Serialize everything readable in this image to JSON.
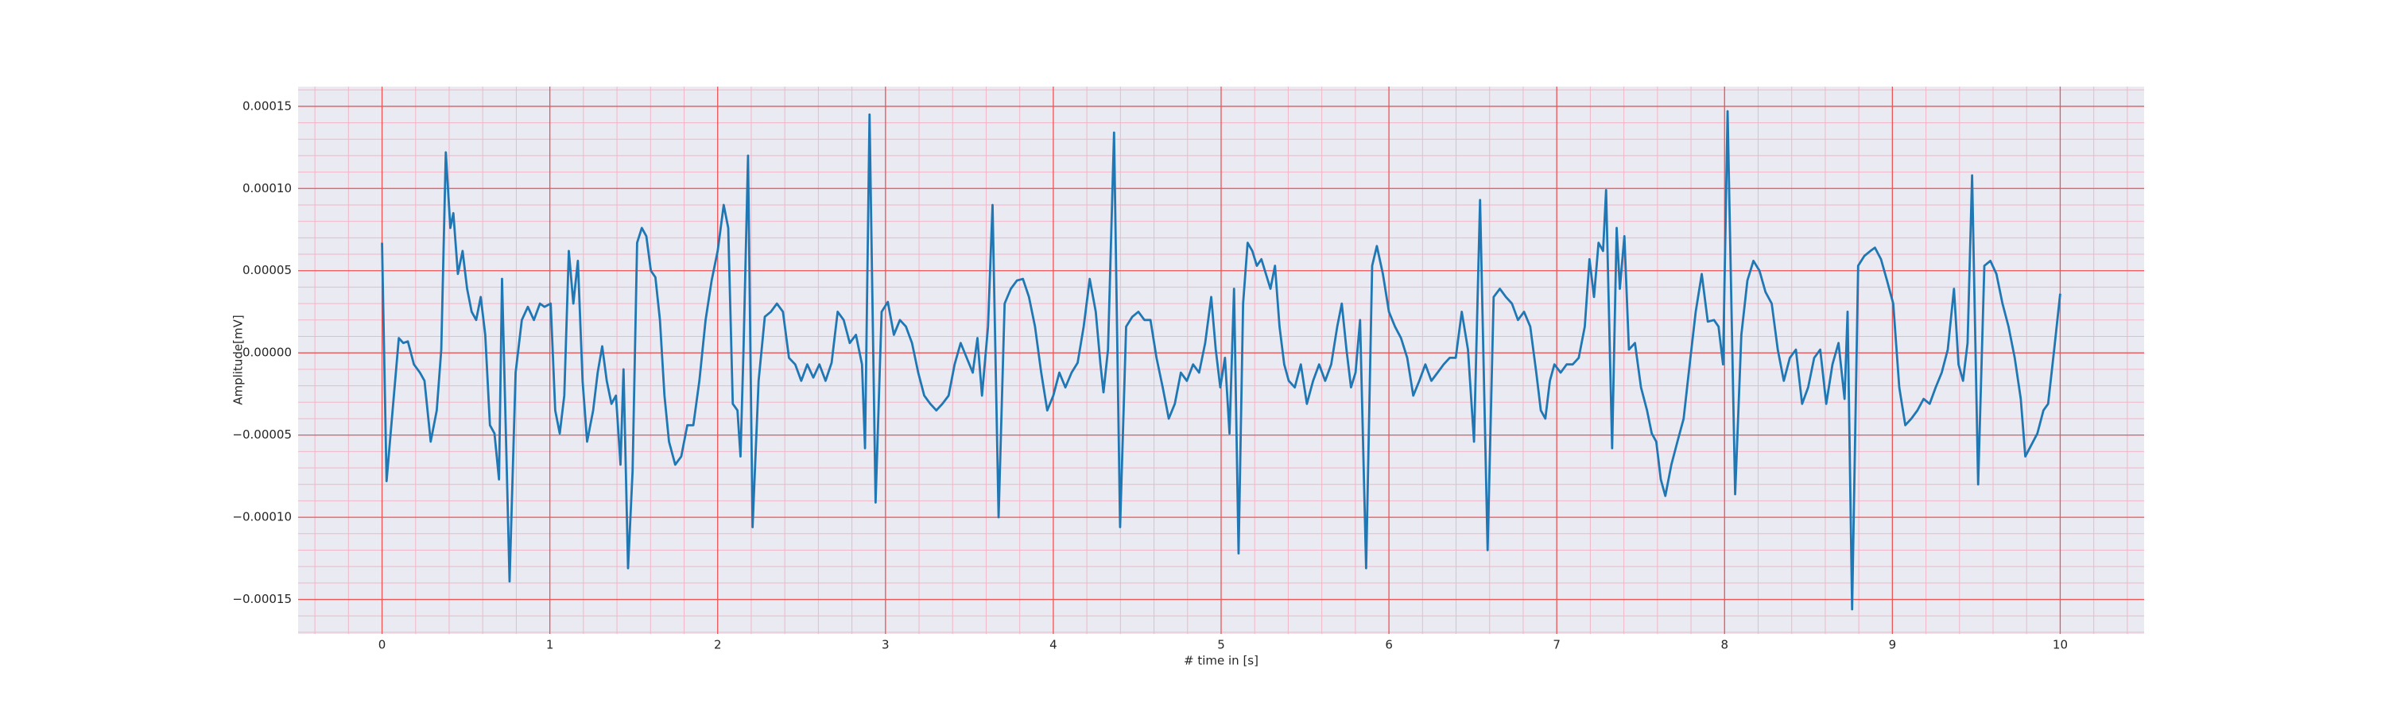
{
  "chart_data": {
    "type": "line",
    "xlabel": "# time in [s]",
    "ylabel": "Amplitude[mV]",
    "color": "#1f77b4",
    "grid": true,
    "minor_grid": true,
    "xlim": [
      -0.5,
      10.5
    ],
    "ylim": [
      -0.000171,
      0.000162
    ],
    "xticks": [
      0,
      1,
      2,
      3,
      4,
      5,
      6,
      7,
      8,
      9,
      10
    ],
    "yticks": [
      {
        "value": -0.00015,
        "label": "−0.00015"
      },
      {
        "value": -0.0001,
        "label": "−0.00010"
      },
      {
        "value": -5e-05,
        "label": "−0.00005"
      },
      {
        "value": 0,
        "label": "0.00000"
      },
      {
        "value": 5e-05,
        "label": "0.00005"
      },
      {
        "value": 0.0001,
        "label": "0.00010"
      },
      {
        "value": 0.00015,
        "label": "0.00015"
      }
    ],
    "x": [
      0,
      0.027,
      0.063,
      0.1,
      0.127,
      0.154,
      0.19,
      0.226,
      0.253,
      0.29,
      0.326,
      0.353,
      0.38,
      0.407,
      0.425,
      0.452,
      0.48,
      0.507,
      0.534,
      0.561,
      0.588,
      0.615,
      0.643,
      0.67,
      0.697,
      0.715,
      0.76,
      0.796,
      0.833,
      0.869,
      0.905,
      0.941,
      0.968,
      1.005,
      1.032,
      1.059,
      1.086,
      1.113,
      1.14,
      1.167,
      1.195,
      1.222,
      1.258,
      1.285,
      1.312,
      1.339,
      1.367,
      1.394,
      1.421,
      1.439,
      1.466,
      1.493,
      1.52,
      1.548,
      1.575,
      1.602,
      1.629,
      1.656,
      1.683,
      1.71,
      1.747,
      1.783,
      1.819,
      1.855,
      1.891,
      1.928,
      1.964,
      2.0,
      2.036,
      2.063,
      2.09,
      2.118,
      2.136,
      2.154,
      2.181,
      2.208,
      2.244,
      2.281,
      2.317,
      2.353,
      2.389,
      2.425,
      2.462,
      2.498,
      2.534,
      2.57,
      2.606,
      2.643,
      2.679,
      2.715,
      2.751,
      2.787,
      2.824,
      2.86,
      2.878,
      2.905,
      2.941,
      2.977,
      3.014,
      3.05,
      3.086,
      3.122,
      3.158,
      3.195,
      3.231,
      3.267,
      3.303,
      3.339,
      3.376,
      3.412,
      3.448,
      3.484,
      3.52,
      3.548,
      3.575,
      3.611,
      3.638,
      3.674,
      3.71,
      3.747,
      3.783,
      3.819,
      3.855,
      3.891,
      3.928,
      3.964,
      4.0,
      4.036,
      4.072,
      4.109,
      4.145,
      4.181,
      4.217,
      4.253,
      4.281,
      4.299,
      4.326,
      4.362,
      4.398,
      4.434,
      4.471,
      4.507,
      4.543,
      4.579,
      4.615,
      4.652,
      4.688,
      4.724,
      4.76,
      4.796,
      4.833,
      4.869,
      4.905,
      4.941,
      4.968,
      4.995,
      5.023,
      5.05,
      5.077,
      5.104,
      5.131,
      5.158,
      5.186,
      5.213,
      5.24,
      5.267,
      5.294,
      5.321,
      5.348,
      5.376,
      5.403,
      5.439,
      5.475,
      5.511,
      5.548,
      5.584,
      5.62,
      5.656,
      5.692,
      5.719,
      5.747,
      5.774,
      5.801,
      5.828,
      5.864,
      5.9,
      5.928,
      5.964,
      6.0,
      6.036,
      6.072,
      6.109,
      6.145,
      6.181,
      6.217,
      6.253,
      6.29,
      6.326,
      6.362,
      6.398,
      6.434,
      6.471,
      6.507,
      6.543,
      6.588,
      6.624,
      6.661,
      6.697,
      6.733,
      6.769,
      6.805,
      6.842,
      6.878,
      6.905,
      6.932,
      6.959,
      6.986,
      7.023,
      7.059,
      7.095,
      7.131,
      7.167,
      7.195,
      7.222,
      7.249,
      7.276,
      7.294,
      7.33,
      7.357,
      7.376,
      7.403,
      7.43,
      7.466,
      7.502,
      7.538,
      7.566,
      7.593,
      7.62,
      7.647,
      7.683,
      7.719,
      7.756,
      7.792,
      7.828,
      7.864,
      7.9,
      7.937,
      7.964,
      7.991,
      8.018,
      8.063,
      8.1,
      8.136,
      8.172,
      8.208,
      8.244,
      8.281,
      8.317,
      8.353,
      8.389,
      8.425,
      8.462,
      8.498,
      8.534,
      8.57,
      8.606,
      8.643,
      8.679,
      8.715,
      8.733,
      8.76,
      8.796,
      8.833,
      8.869,
      8.896,
      8.932,
      8.968,
      9.005,
      9.041,
      9.077,
      9.113,
      9.149,
      9.186,
      9.222,
      9.258,
      9.294,
      9.33,
      9.367,
      9.394,
      9.421,
      9.448,
      9.475,
      9.511,
      9.548,
      9.584,
      9.62,
      9.656,
      9.692,
      9.729,
      9.765,
      9.792,
      9.828,
      9.864,
      9.9,
      9.928,
      9.964,
      10.0
    ],
    "values": [
      6.7e-05,
      -7.8e-05,
      -3.5e-05,
      9e-06,
      6e-06,
      7e-06,
      -7e-06,
      -1.2e-05,
      -1.7e-05,
      -5.4e-05,
      -3.5e-05,
      2e-06,
      0.000122,
      7.6e-05,
      8.5e-05,
      4.8e-05,
      6.2e-05,
      3.9e-05,
      2.5e-05,
      2e-05,
      3.4e-05,
      1.1e-05,
      -4.4e-05,
      -4.9e-05,
      -7.7e-05,
      4.5e-05,
      -0.000139,
      -1.2e-05,
      2e-05,
      2.8e-05,
      2e-05,
      3e-05,
      2.8e-05,
      3e-05,
      -3.5e-05,
      -4.9e-05,
      -2.6e-05,
      6.2e-05,
      3e-05,
      5.6e-05,
      -1.7e-05,
      -5.4e-05,
      -3.5e-05,
      -1.2e-05,
      4e-06,
      -1.7e-05,
      -3.1e-05,
      -2.6e-05,
      -6.8e-05,
      -1e-05,
      -0.000131,
      -7.2e-05,
      6.7e-05,
      7.6e-05,
      7.1e-05,
      5e-05,
      4.6e-05,
      2e-05,
      -2.6e-05,
      -5.4e-05,
      -6.8e-05,
      -6.3e-05,
      -4.4e-05,
      -4.4e-05,
      -1.7e-05,
      2e-05,
      4.4e-05,
      6.2e-05,
      9e-05,
      7.6e-05,
      -3.1e-05,
      -3.5e-05,
      -6.3e-05,
      2e-06,
      0.00012,
      -0.000106,
      -1.7e-05,
      2.2e-05,
      2.5e-05,
      3e-05,
      2.5e-05,
      -3e-06,
      -7e-06,
      -1.7e-05,
      -7e-06,
      -1.5e-05,
      -7e-06,
      -1.7e-05,
      -6e-06,
      2.5e-05,
      2e-05,
      6e-06,
      1.1e-05,
      -7e-06,
      -5.8e-05,
      0.000145,
      -9.1e-05,
      2.5e-05,
      3.1e-05,
      1.1e-05,
      2e-05,
      1.6e-05,
      6e-06,
      -1.2e-05,
      -2.6e-05,
      -3.1e-05,
      -3.5e-05,
      -3.1e-05,
      -2.6e-05,
      -7e-06,
      6e-06,
      -3e-06,
      -1.2e-05,
      9e-06,
      -2.6e-05,
      1.6e-05,
      9e-05,
      -0.0001,
      3e-05,
      3.9e-05,
      4.4e-05,
      4.5e-05,
      3.4e-05,
      1.6e-05,
      -1.2e-05,
      -3.5e-05,
      -2.6e-05,
      -1.2e-05,
      -2.1e-05,
      -1.2e-05,
      -6e-06,
      1.6e-05,
      4.5e-05,
      2.5e-05,
      -7e-06,
      -2.4e-05,
      2e-06,
      0.000134,
      -0.000106,
      1.6e-05,
      2.2e-05,
      2.5e-05,
      2e-05,
      2e-05,
      -3e-06,
      -2.1e-05,
      -4e-05,
      -3.1e-05,
      -1.2e-05,
      -1.7e-05,
      -7e-06,
      -1.2e-05,
      6e-06,
      3.4e-05,
      2e-06,
      -2.1e-05,
      -3e-06,
      -4.9e-05,
      3.9e-05,
      -0.000122,
      3e-05,
      6.7e-05,
      6.2e-05,
      5.3e-05,
      5.7e-05,
      4.8e-05,
      3.9e-05,
      5.3e-05,
      1.6e-05,
      -7e-06,
      -1.7e-05,
      -2.1e-05,
      -7e-06,
      -3.1e-05,
      -1.7e-05,
      -7e-06,
      -1.7e-05,
      -7e-06,
      1.6e-05,
      3e-05,
      2e-06,
      -2.1e-05,
      -1.2e-05,
      2e-05,
      -0.000131,
      5.3e-05,
      6.5e-05,
      4.8e-05,
      2.5e-05,
      1.6e-05,
      9e-06,
      -3e-06,
      -2.6e-05,
      -1.7e-05,
      -7e-06,
      -1.7e-05,
      -1.2e-05,
      -7e-06,
      -3e-06,
      -3e-06,
      2.5e-05,
      2e-06,
      -5.4e-05,
      9.3e-05,
      -0.00012,
      3.4e-05,
      3.9e-05,
      3.4e-05,
      3e-05,
      2e-05,
      2.5e-05,
      1.6e-05,
      -1.2e-05,
      -3.5e-05,
      -4e-05,
      -1.7e-05,
      -7e-06,
      -1.2e-05,
      -7e-06,
      -7e-06,
      -3e-06,
      1.6e-05,
      5.7e-05,
      3.4e-05,
      6.7e-05,
      6.2e-05,
      9.9e-05,
      -5.8e-05,
      7.6e-05,
      3.9e-05,
      7.1e-05,
      2e-06,
      6e-06,
      -2.1e-05,
      -3.5e-05,
      -4.9e-05,
      -5.4e-05,
      -7.7e-05,
      -8.7e-05,
      -6.8e-05,
      -5.4e-05,
      -4e-05,
      -7e-06,
      2.5e-05,
      4.8e-05,
      1.9e-05,
      2e-05,
      1.6e-05,
      -7e-06,
      0.000147,
      -8.6e-05,
      1.1e-05,
      4.4e-05,
      5.6e-05,
      5e-05,
      3.7e-05,
      3e-05,
      2e-06,
      -1.7e-05,
      -3e-06,
      2e-06,
      -3.1e-05,
      -2.1e-05,
      -3e-06,
      2e-06,
      -3.1e-05,
      -7e-06,
      6e-06,
      -2.8e-05,
      2.5e-05,
      -0.000156,
      5.3e-05,
      5.9e-05,
      6.2e-05,
      6.4e-05,
      5.7e-05,
      4.4e-05,
      3e-05,
      -2.1e-05,
      -4.4e-05,
      -4e-05,
      -3.5e-05,
      -2.8e-05,
      -3.1e-05,
      -2.1e-05,
      -1.2e-05,
      2e-06,
      3.9e-05,
      -7e-06,
      -1.7e-05,
      6e-06,
      0.000108,
      -8e-05,
      5.3e-05,
      5.6e-05,
      4.8e-05,
      3e-05,
      1.6e-05,
      -3e-06,
      -2.8e-05,
      -6.3e-05,
      -5.6e-05,
      -4.9e-05,
      -3.5e-05,
      -3.1e-05,
      2e-06,
      3.6e-05
    ]
  }
}
